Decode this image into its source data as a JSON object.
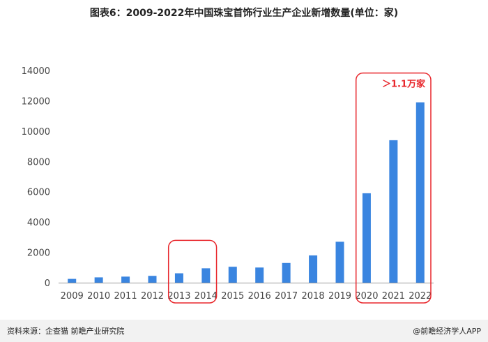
{
  "page": {
    "title": "图表6：2009-2022年中国珠宝首饰行业生产企业新增数量(单位：家)",
    "source": "资料来源：企查猫 前瞻产业研究院",
    "credit": "@前瞻经济学人APP"
  },
  "colors": {
    "bar": "#3a85e0",
    "highlight": "#e8262b",
    "axis": "#999999"
  },
  "chart_data": {
    "type": "bar",
    "title": "图表6：2009-2022年中国珠宝首饰行业生产企业新增数量(单位：家)",
    "categories": [
      "2009",
      "2010",
      "2011",
      "2012",
      "2013",
      "2014",
      "2015",
      "2016",
      "2017",
      "2018",
      "2019",
      "2020",
      "2021",
      "2022"
    ],
    "values": [
      250,
      350,
      400,
      450,
      620,
      950,
      1050,
      1000,
      1300,
      1800,
      2700,
      5900,
      9400,
      11900
    ],
    "ylim": [
      0,
      14000
    ],
    "yticks": [
      0,
      2000,
      4000,
      6000,
      8000,
      10000,
      12000,
      14000
    ],
    "grid": false,
    "highlights": [
      {
        "categories": [
          "2013",
          "2014"
        ]
      },
      {
        "categories": [
          "2020",
          "2021",
          "2022"
        ],
        "label": "＞1.1万家"
      }
    ]
  }
}
